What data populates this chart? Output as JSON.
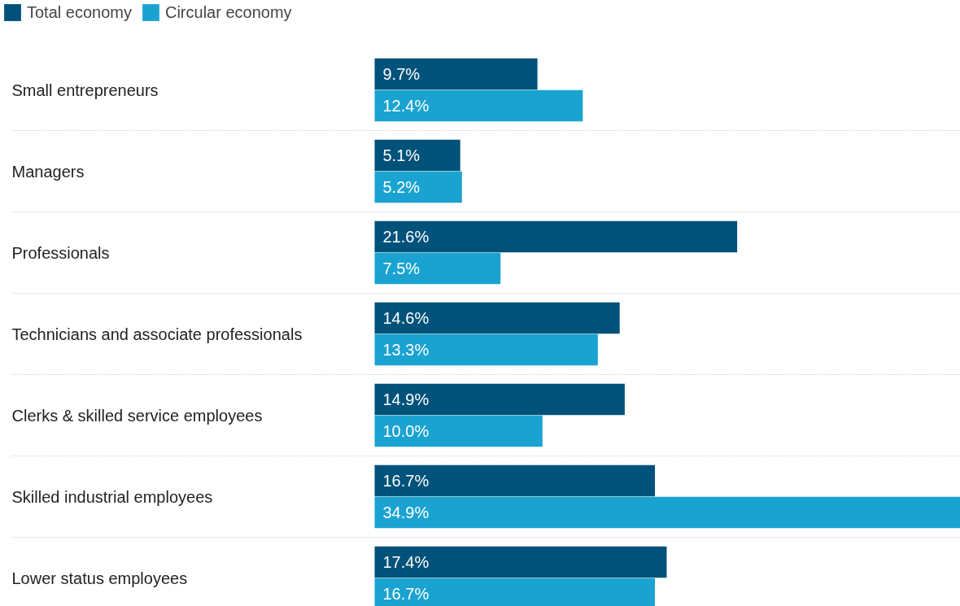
{
  "chart_data": {
    "type": "bar",
    "orientation": "horizontal",
    "legend": "top left",
    "grid": false,
    "categories": [
      "Small entrepreneurs",
      "Managers",
      "Professionals",
      "Technicians and associate professionals",
      "Clerks & skilled service employees",
      "Skilled industrial employees",
      "Lower status employees"
    ],
    "series": [
      {
        "name": "Total economy",
        "color": "#00527a",
        "values": [
          9.7,
          5.1,
          21.6,
          14.6,
          14.9,
          16.7,
          17.4
        ],
        "value_labels": [
          "9.7%",
          "5.1%",
          "21.6%",
          "14.6%",
          "14.9%",
          "16.7%",
          "17.4%"
        ]
      },
      {
        "name": "Circular economy",
        "color": "#1aa3d1",
        "values": [
          12.4,
          5.2,
          7.5,
          13.3,
          10.0,
          34.9,
          16.7
        ],
        "value_labels": [
          "12.4%",
          "5.2%",
          "7.5%",
          "13.3%",
          "10.0%",
          "34.9%",
          "16.7%"
        ]
      }
    ]
  }
}
